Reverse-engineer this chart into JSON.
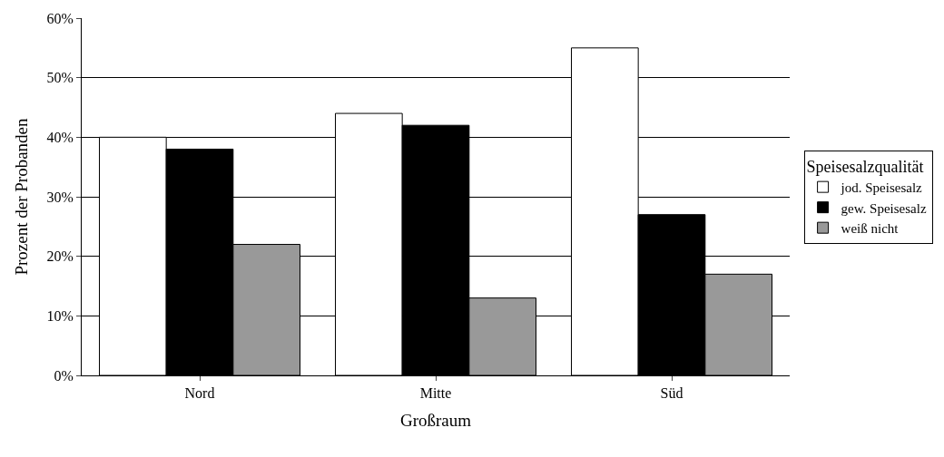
{
  "chart_data": {
    "type": "bar",
    "xlabel": "Großraum",
    "ylabel": "Prozent der Probanden",
    "legend_title": "Speisesalzqualität",
    "categories": [
      "Nord",
      "Mitte",
      "Süd"
    ],
    "series": [
      {
        "name": "jod. Speisesalz",
        "color": "#ffffff",
        "values": [
          40,
          44,
          55
        ]
      },
      {
        "name": "gew. Speisesalz",
        "color": "#000000",
        "values": [
          38,
          42,
          27
        ]
      },
      {
        "name": "weiß nicht",
        "color": "#999999",
        "values": [
          22,
          13,
          17
        ]
      }
    ],
    "ylim": [
      0,
      60
    ],
    "yticks": [
      {
        "value": 0,
        "label": "0%"
      },
      {
        "value": 10,
        "label": "10%"
      },
      {
        "value": 20,
        "label": "20%"
      },
      {
        "value": 30,
        "label": "30%"
      },
      {
        "value": 40,
        "label": "40%"
      },
      {
        "value": 50,
        "label": "50%"
      },
      {
        "value": 60,
        "label": "60%"
      }
    ],
    "grid": "y",
    "legend": "right"
  }
}
